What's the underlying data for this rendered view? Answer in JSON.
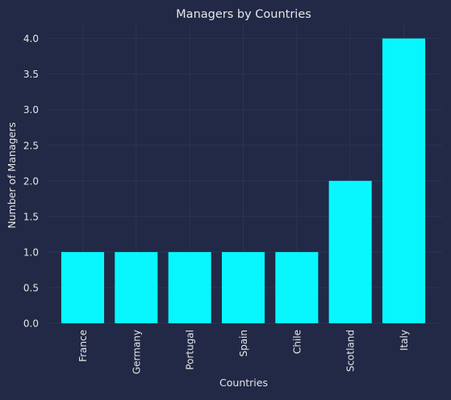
{
  "chart_data": {
    "type": "bar",
    "title": "Managers by Countries",
    "xlabel": "Countries",
    "ylabel": "Number of Managers",
    "categories": [
      "France",
      "Germany",
      "Portugal",
      "Spain",
      "Chile",
      "Scotland",
      "Italy"
    ],
    "values": [
      1,
      1,
      1,
      1,
      1,
      2,
      4
    ],
    "ylim": [
      0,
      4.2
    ],
    "yticks": [
      "0.0",
      "0.5",
      "1.0",
      "1.5",
      "2.0",
      "2.5",
      "3.0",
      "3.5",
      "4.0"
    ],
    "grid": true,
    "legend": "none",
    "colors": {
      "background": "#212946",
      "bar": "#08F7FE",
      "grid": "#2A3459",
      "text": "#E6E6E6"
    }
  }
}
